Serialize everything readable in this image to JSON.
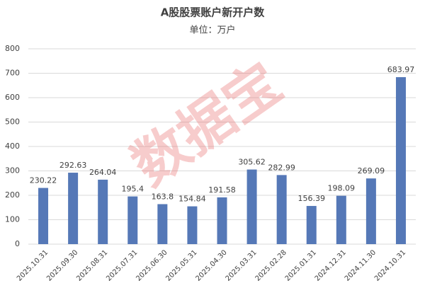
{
  "chart_data": {
    "type": "bar",
    "title": "A股股票账户新开户数",
    "subtitle": "单位：万户",
    "watermark": "数据宝",
    "categories": [
      "2025.10.31",
      "2025.09.30",
      "2025.08.31",
      "2025.07.31",
      "2025.06.30",
      "2025.05.31",
      "2025.04.30",
      "2025.03.31",
      "2025.02.28",
      "2025.01.31",
      "2024.12.31",
      "2024.11.30",
      "2024.10.31"
    ],
    "values": [
      230.22,
      292.63,
      264.04,
      195.4,
      163.8,
      154.84,
      191.58,
      305.62,
      282.99,
      156.39,
      198.09,
      269.09,
      683.97
    ],
    "color": "#5578b7",
    "ylim": [
      0,
      800
    ],
    "yticks": [
      0,
      100,
      200,
      300,
      400,
      500,
      600,
      700,
      800
    ],
    "grid": true
  }
}
